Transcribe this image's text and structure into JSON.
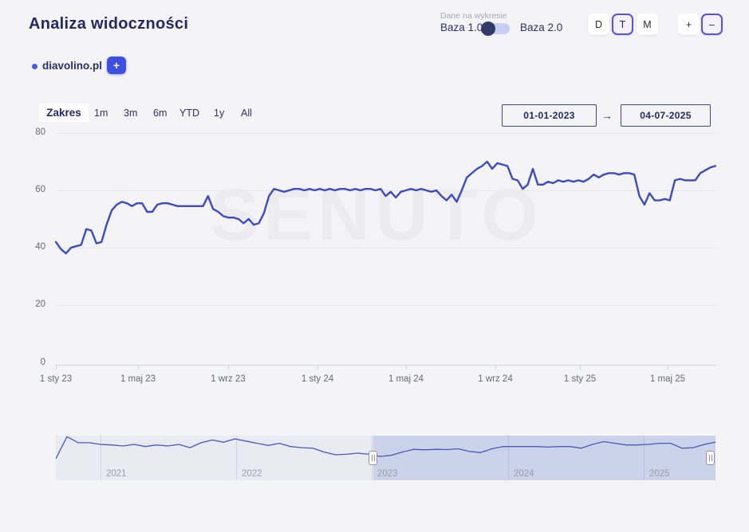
{
  "header": {
    "title": "Analiza widoczności",
    "data_toggle": {
      "caption": "Dane na wykresie",
      "left_label": "Baza 1.0",
      "right_label": "Baza 2.0",
      "selected": "Baza 1.0"
    },
    "granularity": {
      "options": [
        "D",
        "T",
        "M"
      ],
      "selected": "T"
    },
    "zoom_controls": {
      "plus": "+",
      "minus": "–",
      "selected": "–"
    }
  },
  "legend": {
    "series_label": "diavolino.pl",
    "dot_color": "#3f5be5",
    "add_button_label": "+"
  },
  "range_bar": {
    "label": "Zakres",
    "presets": [
      "1m",
      "3m",
      "6m",
      "YTD",
      "1y",
      "All"
    ],
    "date_from": "01-01-2023",
    "arrow": "→",
    "date_to": "04-07-2025"
  },
  "watermark": "SENUTO",
  "chart_data": {
    "type": "line",
    "title": "",
    "xlabel": "",
    "ylabel": "",
    "ylim": [
      0,
      80
    ],
    "y_ticks": [
      0,
      20,
      40,
      60,
      80
    ],
    "x_start": "01-01-2023",
    "x_end": "04-07-2025",
    "x_ticks": [
      "1 sty 23",
      "1 maj 23",
      "1 wrz 23",
      "1 sty 24",
      "1 maj 24",
      "1 wrz 24",
      "1 sty 25",
      "1 maj 25"
    ],
    "grid": true,
    "series": [
      {
        "name": "diavolino.pl",
        "color": "#3c4bbf",
        "interval": "weekly",
        "values": [
          42,
          39.5,
          38,
          40,
          40.5,
          41,
          46.5,
          46,
          41.5,
          42,
          48,
          53,
          55,
          56,
          55.5,
          54.5,
          55.5,
          55.5,
          52.5,
          52.5,
          55,
          55.5,
          55.5,
          55,
          54.5,
          54.5,
          54.5,
          54.5,
          54.5,
          54.5,
          58,
          53.5,
          52.5,
          51,
          50.5,
          50.5,
          50,
          48.5,
          50,
          48,
          48.5,
          52,
          58,
          60.5,
          60,
          59.5,
          60,
          60.5,
          60.5,
          60,
          60.5,
          60,
          60.5,
          60,
          60.5,
          60,
          60.5,
          60.5,
          60,
          60.5,
          60,
          60.5,
          60.5,
          60,
          60.5,
          58,
          59.5,
          57.5,
          59.5,
          60,
          60.5,
          60,
          60.5,
          60,
          59.5,
          60,
          58,
          56.5,
          58.5,
          56,
          60,
          64.5,
          66,
          67.5,
          68.5,
          70,
          67.5,
          69.5,
          69,
          68.5,
          64,
          63.5,
          60.5,
          62,
          67.5,
          62,
          62,
          63,
          62.5,
          63.5,
          63,
          63.5,
          63,
          63.5,
          63,
          64,
          65.5,
          64.5,
          65.5,
          66,
          66,
          65.5,
          66,
          66,
          65.5,
          58,
          55,
          59,
          56.5,
          56.5,
          57,
          56.5,
          63.5,
          64,
          63.5,
          63.5,
          63.5,
          66,
          67,
          68,
          68.5
        ]
      }
    ],
    "navigator": {
      "range_start": "2020-08",
      "range_end": "2025-07",
      "years": [
        "2021",
        "2022",
        "2023",
        "2024",
        "2025"
      ],
      "selected_start": "01-01-2023",
      "selected_end": "04-07-2025",
      "interval": "monthly",
      "values": [
        38,
        78,
        67,
        67,
        64,
        63,
        61,
        64,
        60,
        63,
        61,
        64,
        58,
        67,
        72,
        68,
        74,
        70,
        66,
        62,
        66,
        60,
        58,
        57,
        50,
        45,
        46,
        48,
        46,
        42,
        44,
        50,
        55,
        54,
        55,
        54.5,
        56,
        51,
        49,
        56,
        60,
        60,
        60,
        60,
        59,
        60,
        60,
        57,
        64,
        69,
        66,
        63,
        63,
        64,
        66,
        66,
        57,
        58,
        64,
        68
      ]
    }
  }
}
